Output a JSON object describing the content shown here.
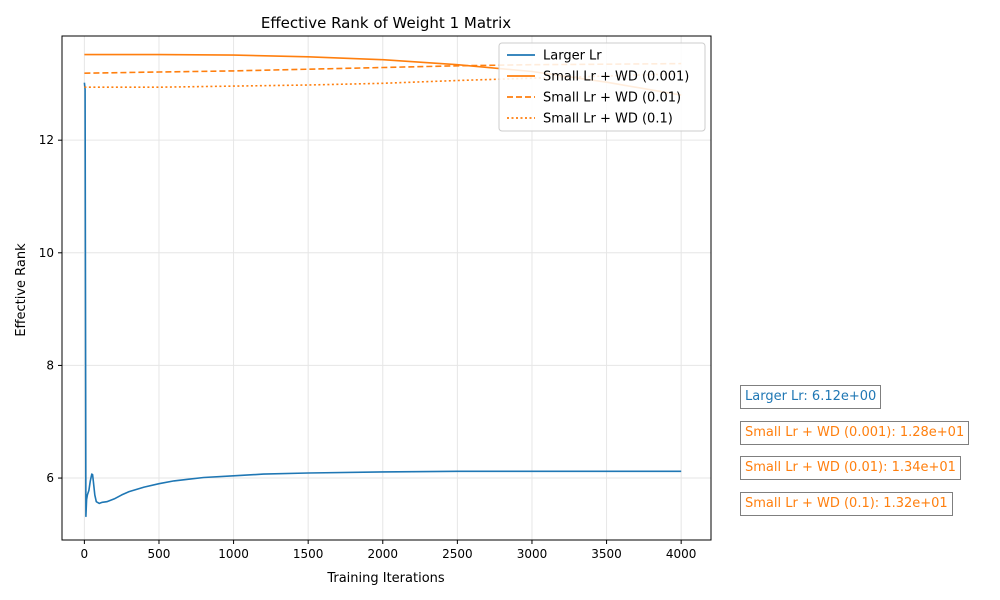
{
  "chart_data": {
    "type": "line",
    "title": "Effective Rank of Weight 1 Matrix",
    "xlabel": "Training Iterations",
    "ylabel": "Effective Rank",
    "xlim": [
      -150,
      4200
    ],
    "ylim": [
      4.9,
      13.85
    ],
    "xticks": [
      0,
      500,
      1000,
      1500,
      2000,
      2500,
      3000,
      3500,
      4000
    ],
    "yticks": [
      6,
      8,
      10,
      12
    ],
    "grid": true,
    "legend_position": "top-right",
    "series": [
      {
        "name": "Larger Lr",
        "color": "#1f77b4",
        "style": "solid",
        "x": [
          0,
          5,
          10,
          15,
          20,
          30,
          40,
          50,
          55,
          60,
          70,
          80,
          100,
          120,
          150,
          200,
          250,
          300,
          400,
          500,
          600,
          700,
          800,
          1000,
          1200,
          1500,
          2000,
          2500,
          3000,
          3500,
          4000
        ],
        "y": [
          13.02,
          12.9,
          5.32,
          5.62,
          5.7,
          5.78,
          5.95,
          6.07,
          6.06,
          5.95,
          5.7,
          5.58,
          5.55,
          5.57,
          5.58,
          5.63,
          5.7,
          5.76,
          5.84,
          5.9,
          5.95,
          5.98,
          6.01,
          6.04,
          6.07,
          6.09,
          6.11,
          6.12,
          6.12,
          6.12,
          6.12
        ]
      },
      {
        "name": "Small Lr + WD (0.001)",
        "color": "#ff7f0e",
        "style": "solid",
        "x": [
          0,
          500,
          1000,
          1500,
          2000,
          2500,
          3000,
          3500,
          4000
        ],
        "y": [
          13.52,
          13.52,
          13.51,
          13.48,
          13.43,
          13.34,
          13.22,
          13.03,
          12.8
        ]
      },
      {
        "name": "Small Lr + WD (0.01)",
        "color": "#ff7f0e",
        "style": "dashed",
        "x": [
          0,
          500,
          1000,
          1500,
          2000,
          2500,
          3000,
          3500,
          4000
        ],
        "y": [
          13.19,
          13.21,
          13.23,
          13.26,
          13.29,
          13.32,
          13.34,
          13.35,
          13.36
        ]
      },
      {
        "name": "Small Lr + WD (0.1)",
        "color": "#ff7f0e",
        "style": "dotted",
        "x": [
          0,
          500,
          1000,
          1500,
          2000,
          2500,
          3000,
          3500,
          4000
        ],
        "y": [
          12.94,
          12.94,
          12.96,
          12.98,
          13.01,
          13.06,
          13.1,
          13.14,
          13.18
        ]
      }
    ]
  },
  "annotations": [
    {
      "text": "Larger Lr: 6.12e+00",
      "color": "#1f77b4"
    },
    {
      "text": "Small Lr + WD (0.001): 1.28e+01",
      "color": "#ff7f0e"
    },
    {
      "text": "Small Lr + WD (0.01): 1.34e+01",
      "color": "#ff7f0e"
    },
    {
      "text": "Small Lr + WD (0.1): 1.32e+01",
      "color": "#ff7f0e"
    }
  ]
}
